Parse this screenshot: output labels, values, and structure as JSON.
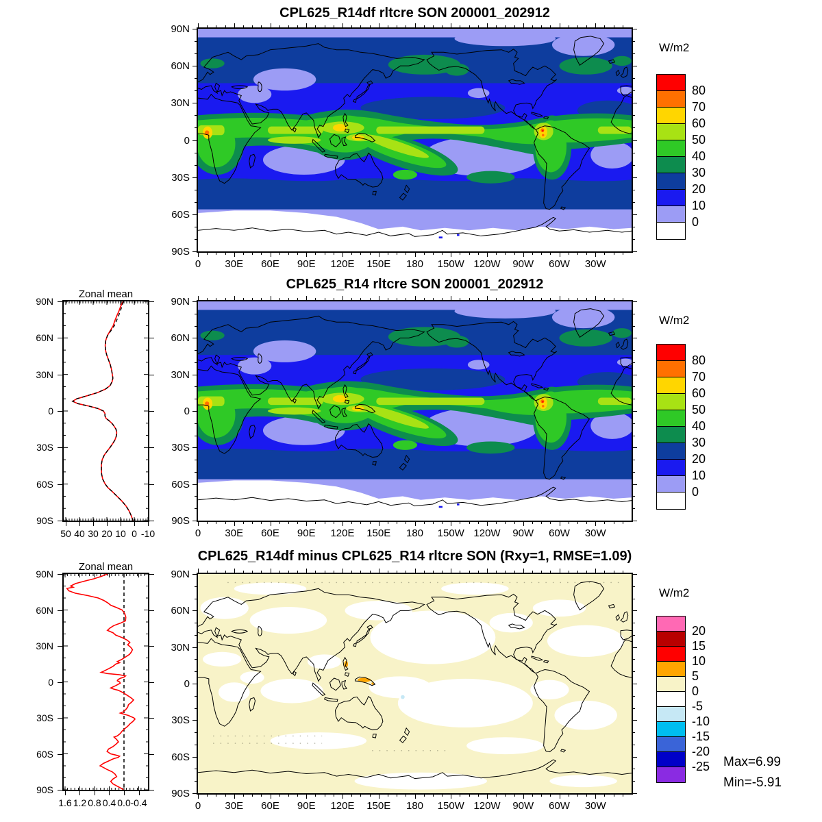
{
  "chart_data": [
    {
      "id": "panel-top",
      "type": "filled-contour-map",
      "title": "CPL625_R14df rltcre SON 200001_202912",
      "units": "W/m2",
      "lon_tick_labels": [
        "0",
        "30E",
        "60E",
        "90E",
        "120E",
        "150E",
        "180",
        "150W",
        "120W",
        "90W",
        "60W",
        "30W"
      ],
      "lat_tick_labels": [
        "90N",
        "60N",
        "30N",
        "0",
        "30S",
        "60S",
        "90S"
      ],
      "colorbar": {
        "labels": [
          "80",
          "70",
          "60",
          "50",
          "40",
          "30",
          "20",
          "10",
          "0"
        ],
        "colors": [
          "#FF0000",
          "#FF7000",
          "#FFD600",
          "#A8E214",
          "#2FC926",
          "#0D8C4E",
          "#0E3D9E",
          "#1A1AF0",
          "#9C9CF5",
          "#FFFFFF"
        ]
      }
    },
    {
      "id": "panel-middle",
      "type": "filled-contour-map",
      "title": "CPL625_R14 rltcre SON 200001_202912",
      "units": "W/m2",
      "lon_tick_labels": [
        "0",
        "30E",
        "60E",
        "90E",
        "120E",
        "150E",
        "180",
        "150W",
        "120W",
        "90W",
        "60W",
        "30W"
      ],
      "lat_tick_labels": [
        "90N",
        "60N",
        "30N",
        "0",
        "30S",
        "60S",
        "90S"
      ],
      "colorbar": {
        "labels": [
          "80",
          "70",
          "60",
          "50",
          "40",
          "30",
          "20",
          "10",
          "0"
        ],
        "colors": [
          "#FF0000",
          "#FF7000",
          "#FFD600",
          "#A8E214",
          "#2FC926",
          "#0D8C4E",
          "#0E3D9E",
          "#1A1AF0",
          "#9C9CF5",
          "#FFFFFF"
        ]
      },
      "zonal": {
        "type": "line",
        "title": "Zonal mean",
        "x_tick_labels": [
          "50",
          "40",
          "30",
          "20",
          "10",
          "0",
          "-10"
        ],
        "x_tick_values": [
          50,
          40,
          30,
          20,
          10,
          0,
          -10
        ],
        "x_minor_step": 2,
        "x_range": [
          51.5,
          -10
        ],
        "lat_tick_labels": [
          "90N",
          "60N",
          "30N",
          "0",
          "30S",
          "60S",
          "90S"
        ],
        "lats": [
          90,
          86,
          82,
          78,
          74,
          70,
          66,
          62,
          58,
          54,
          50,
          46,
          42,
          38,
          34,
          30,
          27,
          24,
          21,
          18,
          15,
          12,
          10,
          8,
          6,
          4,
          2,
          0,
          -2,
          -4,
          -6,
          -8,
          -10,
          -12,
          -15,
          -18,
          -21,
          -24,
          -27,
          -30,
          -33,
          -36,
          -40,
          -44,
          -48,
          -52,
          -56,
          -60,
          -63,
          -66,
          -70,
          -74,
          -78,
          -82,
          -86,
          -90
        ],
        "series": [
          {
            "name": "model-red-line",
            "color": "#FF0000",
            "values": [
              8.2,
              9.9,
              11.2,
              12.8,
              14.2,
              15.4,
              17.5,
              19.6,
              20.8,
              21.2,
              21.0,
              20.1,
              18.8,
              17.5,
              16.6,
              16.0,
              15.6,
              16.2,
              17.6,
              21.0,
              27.0,
              36.0,
              42.0,
              45.0,
              41.0,
              33.0,
              26.5,
              22.5,
              21.4,
              21.4,
              20.6,
              18.4,
              16.4,
              15.0,
              13.3,
              12.8,
              13.2,
              14.2,
              15.9,
              17.7,
              19.8,
              21.8,
              23.4,
              24.0,
              24.0,
              23.8,
              23.0,
              21.2,
              19.2,
              16.2,
              12.6,
              9.0,
              6.0,
              3.8,
              2.2,
              0.9
            ]
          },
          {
            "name": "obs-black-dashed-line",
            "color": "#000000",
            "values": [
              8.0,
              9.0,
              10.2,
              11.5,
              13.0,
              14.6,
              17.0,
              19.5,
              20.8,
              21.2,
              21.0,
              20.1,
              18.8,
              17.5,
              16.6,
              16.0,
              15.6,
              16.2,
              17.6,
              21.0,
              27.0,
              36.0,
              42.0,
              45.0,
              41.0,
              33.0,
              26.5,
              22.5,
              21.4,
              21.4,
              20.6,
              18.4,
              16.4,
              15.0,
              13.3,
              12.8,
              13.2,
              14.2,
              15.9,
              17.7,
              19.8,
              21.8,
              23.4,
              24.0,
              24.0,
              23.8,
              23.0,
              21.2,
              19.2,
              16.2,
              12.6,
              9.0,
              6.0,
              3.8,
              2.2,
              0.9
            ]
          }
        ]
      }
    },
    {
      "id": "panel-diff",
      "type": "filled-contour-map-difference",
      "title": "CPL625_R14df minus CPL625_R14 rltcre SON (Rxy=1, RMSE=1.09)",
      "units": "W/m2",
      "lon_tick_labels": [
        "0",
        "30E",
        "60E",
        "90E",
        "120E",
        "150E",
        "180",
        "150W",
        "120W",
        "90W",
        "60W",
        "30W"
      ],
      "lat_tick_labels": [
        "90N",
        "60N",
        "30N",
        "0",
        "30S",
        "60S",
        "90S"
      ],
      "colorbar": {
        "labels": [
          "20",
          "15",
          "10",
          "5",
          "0",
          "-5",
          "-10",
          "-15",
          "-20",
          "-25"
        ],
        "colors": [
          "#FF69B4",
          "#B80000",
          "#FF0000",
          "#FFA500",
          "#F8F3C8",
          "#FFFFFF",
          "#C6E8F5",
          "#00BEF0",
          "#3A64D8",
          "#0000C8",
          "#8A2BE2"
        ]
      },
      "stats": {
        "max_label": "Max=6.99",
        "min_label": "Min=-5.91"
      },
      "zonal": {
        "type": "line",
        "title": "Zonal mean",
        "x_tick_labels": [
          "1.6",
          "1.2",
          "0.8",
          "0.4",
          "0.0",
          "-0.4"
        ],
        "x_tick_values": [
          1.6,
          1.2,
          0.8,
          0.4,
          0.0,
          -0.4
        ],
        "x_minor_step": 0.1,
        "x_range": [
          1.637,
          -0.651
        ],
        "zero_line": 0.0,
        "lat_tick_labels": [
          "90N",
          "60N",
          "30N",
          "0",
          "30S",
          "60S",
          "90S"
        ],
        "lats": [
          90,
          88,
          86,
          84,
          82,
          80,
          79,
          78,
          76,
          74,
          72,
          70,
          68,
          66,
          64,
          62,
          60,
          57,
          54,
          51,
          49,
          47,
          45,
          43,
          41,
          39,
          37,
          35,
          33,
          31,
          29,
          27,
          25,
          23,
          21,
          19,
          17,
          16,
          15,
          13,
          11,
          9,
          8,
          7,
          6,
          5,
          4,
          3,
          2,
          1,
          0,
          -1,
          -3,
          -5,
          -6,
          -7,
          -9,
          -11,
          -13,
          -15,
          -17,
          -19,
          -21,
          -23,
          -25,
          -26,
          -28,
          -30,
          -31,
          -33,
          -35,
          -37,
          -39,
          -41,
          -43,
          -45,
          -46,
          -48,
          -50,
          -52,
          -54,
          -56,
          -58,
          -60,
          -61,
          -62,
          -63,
          -64,
          -66,
          -68,
          -70,
          -71,
          -73,
          -75,
          -77,
          -79,
          -81,
          -83,
          -85,
          -87,
          -89,
          -90
        ],
        "series": [
          {
            "name": "diff-red-line",
            "color": "#FF0000",
            "values": [
              0.45,
              0.62,
              0.82,
              1.08,
              1.32,
              1.45,
              1.38,
              1.55,
              1.5,
              1.32,
              0.98,
              0.7,
              0.55,
              0.44,
              0.36,
              0.2,
              0.05,
              -0.02,
              -0.05,
              -0.04,
              0.1,
              0.28,
              0.38,
              0.45,
              0.3,
              0.22,
              0.05,
              -0.08,
              -0.16,
              -0.1,
              -0.18,
              -0.23,
              -0.2,
              -0.15,
              -0.05,
              0.05,
              0.18,
              0.12,
              0.22,
              0.3,
              0.42,
              0.55,
              0.62,
              0.45,
              0.12,
              -0.04,
              0.0,
              0.1,
              0.16,
              0.18,
              0.12,
              0.1,
              0.22,
              0.36,
              0.28,
              0.15,
              0.02,
              -0.08,
              -0.18,
              -0.26,
              -0.2,
              -0.12,
              -0.1,
              -0.05,
              0.02,
              0.1,
              -0.12,
              -0.27,
              -0.3,
              -0.24,
              -0.16,
              -0.1,
              -0.02,
              0.05,
              0.1,
              0.18,
              0.27,
              0.2,
              0.15,
              0.22,
              0.3,
              0.42,
              0.46,
              0.36,
              0.22,
              0.12,
              0.16,
              0.28,
              0.42,
              0.56,
              0.65,
              0.58,
              0.46,
              0.32,
              0.24,
              0.2,
              0.3,
              0.36,
              0.3,
              0.18,
              0.06,
              0.02
            ]
          }
        ]
      }
    }
  ]
}
